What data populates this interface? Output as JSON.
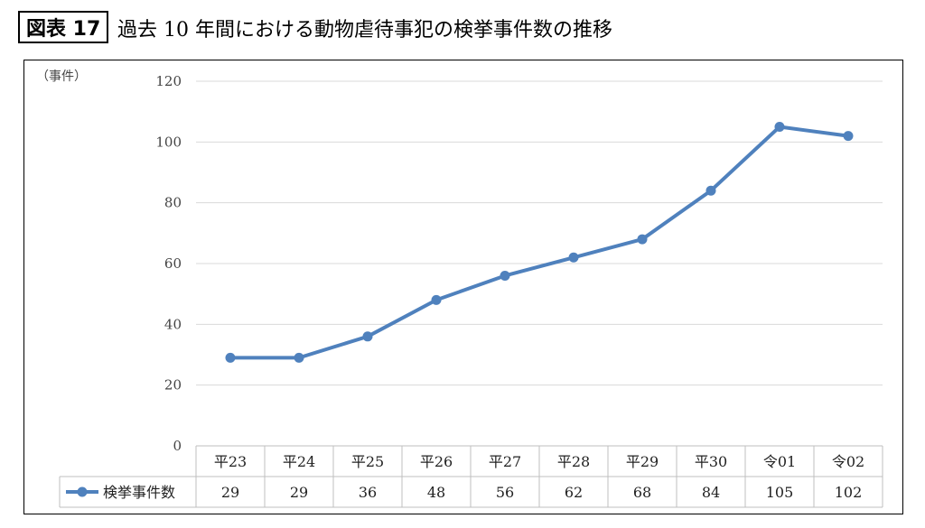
{
  "figure": {
    "label": "図表 17",
    "title": "過去 10 年間における動物虐待事犯の検挙事件数の推移"
  },
  "chart_data": {
    "type": "line",
    "unit_label": "（事件）",
    "categories": [
      "平23",
      "平24",
      "平25",
      "平26",
      "平27",
      "平28",
      "平29",
      "平30",
      "令01",
      "令02"
    ],
    "series": [
      {
        "name": "検挙事件数",
        "values": [
          29,
          29,
          36,
          48,
          56,
          62,
          68,
          84,
          105,
          102
        ],
        "color": "#4f81bd"
      }
    ],
    "ylim": [
      0,
      120
    ],
    "yticks": [
      0,
      20,
      40,
      60,
      80,
      100,
      120
    ],
    "grid": true,
    "data_table": true
  }
}
